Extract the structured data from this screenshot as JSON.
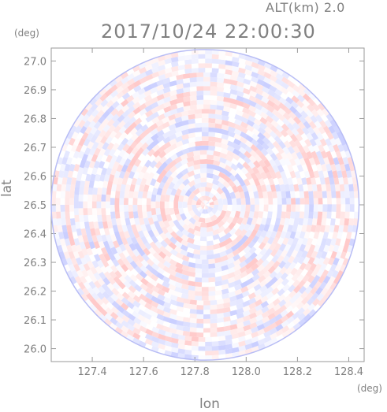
{
  "header": {
    "altitude_label": "ALT(km) 2.0",
    "timestamp": "2017/10/24 22:00:30"
  },
  "chart_data": {
    "type": "heatmap",
    "title": "2017/10/24 22:00:30",
    "subtitle": "ALT(km) 2.0",
    "xlabel": "lon",
    "ylabel": "lat",
    "x_unit": "(deg)",
    "y_unit": "(deg)",
    "xlim": [
      127.24,
      128.46
    ],
    "ylim": [
      25.955,
      27.045
    ],
    "x_ticks": [
      "127.4",
      "127.6",
      "127.8",
      "128.0",
      "128.2",
      "128.4"
    ],
    "y_ticks": [
      "26.0",
      "26.1",
      "26.2",
      "26.3",
      "26.4",
      "26.5",
      "26.6",
      "26.7",
      "26.8",
      "26.9",
      "27.0"
    ],
    "center": {
      "lon": 127.84,
      "lat": 26.5
    },
    "radius_deg": {
      "lon": 0.6,
      "lat": 0.54
    },
    "colormap": {
      "negative": "#c7ccff",
      "zero": "#ffffff",
      "positive": "#ffc7c7"
    },
    "grid": false
  }
}
